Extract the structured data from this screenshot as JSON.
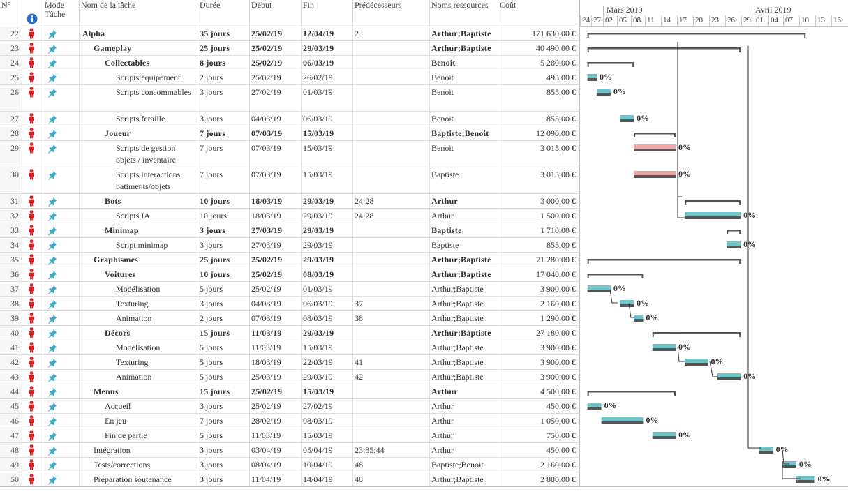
{
  "columns": {
    "id": "N°",
    "info": "i",
    "mode": "Mode Tâche",
    "name": "Nom de la tâche",
    "duration": "Durée",
    "start": "Début",
    "finish": "Fin",
    "predecessors": "Prédécesseurs",
    "resources": "Noms ressources",
    "cost": "Coût"
  },
  "timescale": {
    "months": [
      "Mars 2019",
      "Avril 2019"
    ],
    "days": [
      "24",
      "27",
      "02",
      "05",
      "08",
      "11",
      "14",
      "17",
      "20",
      "23",
      "26",
      "29",
      "01",
      "04",
      "07",
      "10",
      "13",
      "16"
    ]
  },
  "colors": {
    "task_bar": "#6ec4c8",
    "critical_bar": "#f0a8a8",
    "summary_bar": "#555555",
    "person_icon": "#e02020",
    "pin_icon": "#3aa8c8"
  },
  "rows": [
    {
      "id": "22",
      "name": "Alpha",
      "level": 0,
      "summary": true,
      "duration": "35 jours",
      "start": "25/02/19",
      "finish": "12/04/19",
      "pred": "2",
      "res": "Arthur;Baptiste",
      "cost": "171 630,00 €"
    },
    {
      "id": "23",
      "name": "Gameplay",
      "level": 1,
      "summary": true,
      "duration": "25 jours",
      "start": "25/02/19",
      "finish": "29/03/19",
      "pred": "",
      "res": "Arthur;Baptiste",
      "cost": "40 490,00 €"
    },
    {
      "id": "24",
      "name": "Collectables",
      "level": 2,
      "summary": true,
      "duration": "8 jours",
      "start": "25/02/19",
      "finish": "06/03/19",
      "pred": "",
      "res": "Benoit",
      "cost": "5 280,00 €"
    },
    {
      "id": "25",
      "name": "Scripts équipement",
      "level": 3,
      "summary": false,
      "duration": "2 jours",
      "start": "25/02/19",
      "finish": "26/02/19",
      "pred": "",
      "res": "Benoit",
      "cost": "495,00 €",
      "pct": "0%"
    },
    {
      "id": "26",
      "name": "Scripts consommables",
      "level": 3,
      "summary": false,
      "duration": "3 jours",
      "start": "27/02/19",
      "finish": "01/03/19",
      "pred": "",
      "res": "Benoit",
      "cost": "855,00 €",
      "pct": "0%"
    },
    {
      "id": "27",
      "name": "Scripts feraille",
      "level": 3,
      "summary": false,
      "duration": "3 jours",
      "start": "04/03/19",
      "finish": "06/03/19",
      "pred": "",
      "res": "Benoit",
      "cost": "855,00 €",
      "pct": "0%"
    },
    {
      "id": "28",
      "name": "Joueur",
      "level": 2,
      "summary": true,
      "duration": "7 jours",
      "start": "07/03/19",
      "finish": "15/03/19",
      "pred": "",
      "res": "Baptiste;Benoit",
      "cost": "12 090,00 €"
    },
    {
      "id": "29",
      "name": "Scripts de gestion objets / inventaire",
      "level": 3,
      "summary": false,
      "critical": true,
      "duration": "7 jours",
      "start": "07/03/19",
      "finish": "15/03/19",
      "pred": "",
      "res": "Benoit",
      "cost": "3 015,00 €",
      "pct": "0%"
    },
    {
      "id": "30",
      "name": "Scripts interactions batiments/objets",
      "level": 3,
      "summary": false,
      "critical": true,
      "duration": "7 jours",
      "start": "07/03/19",
      "finish": "15/03/19",
      "pred": "",
      "res": "Baptiste",
      "cost": "3 015,00 €",
      "pct": "0%"
    },
    {
      "id": "31",
      "name": "Bots",
      "level": 2,
      "summary": true,
      "duration": "10 jours",
      "start": "18/03/19",
      "finish": "29/03/19",
      "pred": "24;28",
      "res": "Arthur",
      "cost": "3 000,00 €"
    },
    {
      "id": "32",
      "name": "Scripts IA",
      "level": 3,
      "summary": false,
      "duration": "10 jours",
      "start": "18/03/19",
      "finish": "29/03/19",
      "pred": "24;28",
      "res": "Arthur",
      "cost": "1 500,00 €",
      "pct": "0%"
    },
    {
      "id": "33",
      "name": "Minimap",
      "level": 2,
      "summary": true,
      "duration": "3 jours",
      "start": "27/03/19",
      "finish": "29/03/19",
      "pred": "",
      "res": "Baptiste",
      "cost": "1 710,00 €"
    },
    {
      "id": "34",
      "name": "Script minimap",
      "level": 3,
      "summary": false,
      "duration": "3 jours",
      "start": "27/03/19",
      "finish": "29/03/19",
      "pred": "",
      "res": "Baptiste",
      "cost": "855,00 €",
      "pct": "0%"
    },
    {
      "id": "35",
      "name": "Graphismes",
      "level": 1,
      "summary": true,
      "duration": "25 jours",
      "start": "25/02/19",
      "finish": "29/03/19",
      "pred": "",
      "res": "Arthur;Baptiste",
      "cost": "71 280,00 €"
    },
    {
      "id": "36",
      "name": "Voitures",
      "level": 2,
      "summary": true,
      "duration": "10 jours",
      "start": "25/02/19",
      "finish": "08/03/19",
      "pred": "",
      "res": "Arthur;Baptiste",
      "cost": "17 040,00 €"
    },
    {
      "id": "37",
      "name": "Modélisation",
      "level": 3,
      "summary": false,
      "duration": "5 jours",
      "start": "25/02/19",
      "finish": "01/03/19",
      "pred": "",
      "res": "Arthur;Baptiste",
      "cost": "3 900,00 €",
      "pct": "0%"
    },
    {
      "id": "38",
      "name": "Texturing",
      "level": 3,
      "summary": false,
      "duration": "3 jours",
      "start": "04/03/19",
      "finish": "06/03/19",
      "pred": "37",
      "res": "Arthur;Baptiste",
      "cost": "2 160,00 €",
      "pct": "0%"
    },
    {
      "id": "39",
      "name": "Animation",
      "level": 3,
      "summary": false,
      "duration": "2 jours",
      "start": "07/03/19",
      "finish": "08/03/19",
      "pred": "38",
      "res": "Arthur;Baptiste",
      "cost": "1 290,00 €",
      "pct": "0%"
    },
    {
      "id": "40",
      "name": "Décors",
      "level": 2,
      "summary": true,
      "duration": "15 jours",
      "start": "11/03/19",
      "finish": "29/03/19",
      "pred": "",
      "res": "Arthur;Baptiste",
      "cost": "27 180,00 €"
    },
    {
      "id": "41",
      "name": "Modélisation",
      "level": 3,
      "summary": false,
      "duration": "5 jours",
      "start": "11/03/19",
      "finish": "15/03/19",
      "pred": "",
      "res": "Arthur;Baptiste",
      "cost": "3 900,00 €",
      "pct": "0%"
    },
    {
      "id": "42",
      "name": "Texturing",
      "level": 3,
      "summary": false,
      "duration": "5 jours",
      "start": "18/03/19",
      "finish": "22/03/19",
      "pred": "41",
      "res": "Arthur;Baptiste",
      "cost": "3 900,00 €",
      "pct": "0%"
    },
    {
      "id": "43",
      "name": "Animation",
      "level": 3,
      "summary": false,
      "duration": "5 jours",
      "start": "25/03/19",
      "finish": "29/03/19",
      "pred": "42",
      "res": "Arthur;Baptiste",
      "cost": "3 900,00 €",
      "pct": "0%"
    },
    {
      "id": "44",
      "name": "Menus",
      "level": 1,
      "summary": true,
      "duration": "15 jours",
      "start": "25/02/19",
      "finish": "15/03/19",
      "pred": "",
      "res": "Arthur",
      "cost": "4 500,00 €"
    },
    {
      "id": "45",
      "name": "Accueil",
      "level": 2,
      "summary": false,
      "duration": "3 jours",
      "start": "25/02/19",
      "finish": "27/02/19",
      "pred": "",
      "res": "Arthur",
      "cost": "450,00 €",
      "pct": "0%"
    },
    {
      "id": "46",
      "name": "En jeu",
      "level": 2,
      "summary": false,
      "duration": "7 jours",
      "start": "28/02/19",
      "finish": "08/03/19",
      "pred": "",
      "res": "Arthur",
      "cost": "1 050,00 €",
      "pct": "0%"
    },
    {
      "id": "47",
      "name": "Fin de partie",
      "level": 2,
      "summary": false,
      "duration": "5 jours",
      "start": "11/03/19",
      "finish": "15/03/19",
      "pred": "",
      "res": "Arthur",
      "cost": "750,00 €",
      "pct": "0%"
    },
    {
      "id": "48",
      "name": "Intégration",
      "level": 1,
      "summary": false,
      "duration": "3 jours",
      "start": "03/04/19",
      "finish": "05/04/19",
      "pred": "23;35;44",
      "res": "Arthur",
      "cost": "450,00 €",
      "pct": "0%"
    },
    {
      "id": "49",
      "name": "Tests/corrections",
      "level": 1,
      "summary": false,
      "duration": "3 jours",
      "start": "08/04/19",
      "finish": "10/04/19",
      "pred": "48",
      "res": "Baptiste;Benoit",
      "cost": "2 160,00 €",
      "pct": "0%"
    },
    {
      "id": "50",
      "name": "Preparation soutenance",
      "level": 1,
      "summary": false,
      "duration": "3 jours",
      "start": "11/04/19",
      "finish": "14/04/19",
      "pred": "48",
      "res": "Arthur;Baptiste",
      "cost": "2 880,00 €",
      "pct": "0%"
    }
  ]
}
